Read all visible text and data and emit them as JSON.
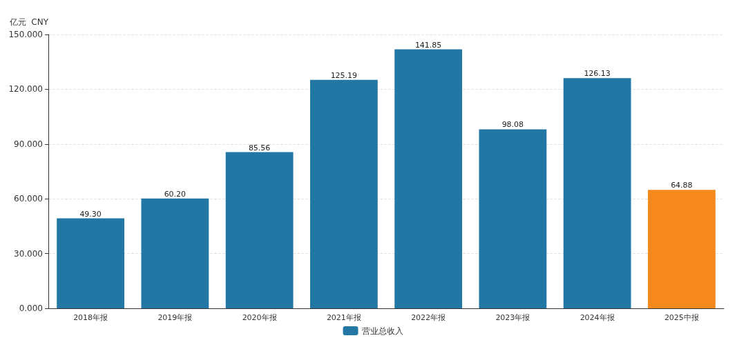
{
  "chart_data": {
    "type": "bar",
    "ylabel": "亿元  CNY",
    "categories": [
      "2018年报",
      "2019年报",
      "2020年报",
      "2021年报",
      "2022年报",
      "2023年报",
      "2024年报",
      "2025中报"
    ],
    "series": [
      {
        "name": "营业总收入",
        "color": "#2377a4",
        "colors": [
          "#2377a4",
          "#2377a4",
          "#2377a4",
          "#2377a4",
          "#2377a4",
          "#2377a4",
          "#2377a4",
          "#f5891b"
        ],
        "values": [
          49.3,
          60.2,
          85.56,
          125.19,
          141.85,
          98.08,
          126.13,
          64.88
        ],
        "value_labels": [
          "49.30",
          "60.20",
          "85.56",
          "125.19",
          "141.85",
          "98.08",
          "126.13",
          "64.88"
        ]
      }
    ],
    "ylim": [
      0,
      150
    ],
    "yticks": [
      {
        "value": 0,
        "label": "0.000"
      },
      {
        "value": 30,
        "label": "30.000"
      },
      {
        "value": 60,
        "label": "60.000"
      },
      {
        "value": 90,
        "label": "90.000"
      },
      {
        "value": 120,
        "label": "120.000"
      },
      {
        "value": 150,
        "label": "150.000"
      }
    ],
    "grid": "y",
    "legend": "bottom"
  }
}
